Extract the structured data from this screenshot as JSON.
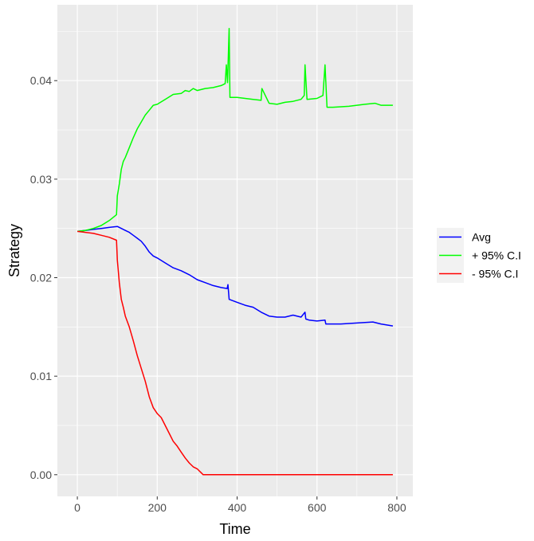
{
  "chart_data": {
    "type": "line",
    "title": "",
    "xlabel": "Time",
    "ylabel": "Strategy",
    "xlim": [
      -50,
      840
    ],
    "ylim": [
      -0.0022,
      0.0477
    ],
    "x_ticks": [
      0,
      200,
      400,
      600,
      800
    ],
    "x_tick_labels": [
      "0",
      "200",
      "400",
      "600",
      "800"
    ],
    "y_ticks": [
      0,
      0.01,
      0.02,
      0.03,
      0.04
    ],
    "y_tick_labels": [
      "0.00",
      "0.01",
      "0.02",
      "0.03",
      "0.04"
    ],
    "grid": true,
    "legend_position": "right",
    "series": [
      {
        "name": "Avg",
        "color": "#0000ff",
        "x": [
          0,
          20,
          40,
          60,
          80,
          100,
          110,
          120,
          130,
          140,
          150,
          160,
          170,
          180,
          190,
          200,
          220,
          240,
          260,
          280,
          300,
          320,
          340,
          360,
          375,
          377,
          380,
          400,
          420,
          440,
          460,
          480,
          500,
          520,
          540,
          560,
          570,
          572,
          580,
          600,
          620,
          622,
          640,
          660,
          700,
          740,
          760,
          790
        ],
        "y": [
          0.0247,
          0.0248,
          0.0249,
          0.025,
          0.0251,
          0.0252,
          0.025,
          0.0248,
          0.0246,
          0.0243,
          0.024,
          0.0237,
          0.0232,
          0.0226,
          0.0222,
          0.022,
          0.0215,
          0.021,
          0.0207,
          0.0203,
          0.0198,
          0.0195,
          0.0192,
          0.019,
          0.0189,
          0.0193,
          0.0178,
          0.0175,
          0.0172,
          0.017,
          0.0165,
          0.0161,
          0.016,
          0.016,
          0.0162,
          0.016,
          0.0165,
          0.0158,
          0.0157,
          0.0156,
          0.0157,
          0.0153,
          0.0153,
          0.0153,
          0.0154,
          0.0155,
          0.0153,
          0.0151
        ]
      },
      {
        "name": "+ 95% C.I",
        "color": "#00ff00",
        "x": [
          0,
          20,
          40,
          60,
          80,
          98,
          100,
          105,
          110,
          115,
          120,
          130,
          140,
          150,
          160,
          170,
          180,
          190,
          200,
          220,
          240,
          260,
          270,
          280,
          290,
          300,
          320,
          340,
          360,
          370,
          373,
          376,
          380,
          382,
          400,
          420,
          440,
          460,
          462,
          480,
          500,
          520,
          540,
          560,
          568,
          570,
          575,
          600,
          615,
          620,
          625,
          640,
          680,
          720,
          745,
          760,
          790
        ],
        "y": [
          0.0247,
          0.0248,
          0.025,
          0.0253,
          0.0258,
          0.0264,
          0.0283,
          0.0295,
          0.031,
          0.0318,
          0.0322,
          0.0332,
          0.0342,
          0.0351,
          0.0358,
          0.0365,
          0.037,
          0.0375,
          0.0376,
          0.0381,
          0.0386,
          0.0387,
          0.039,
          0.0389,
          0.0392,
          0.039,
          0.0392,
          0.0393,
          0.0395,
          0.0397,
          0.0416,
          0.0398,
          0.0453,
          0.0383,
          0.0383,
          0.0382,
          0.0381,
          0.038,
          0.0392,
          0.0377,
          0.0376,
          0.0378,
          0.0379,
          0.0381,
          0.0385,
          0.0416,
          0.0381,
          0.0382,
          0.0385,
          0.0416,
          0.0373,
          0.0373,
          0.0374,
          0.0376,
          0.0377,
          0.0375,
          0.0375
        ]
      },
      {
        "name": "- 95% C.I",
        "color": "#ff0000",
        "x": [
          0,
          20,
          40,
          60,
          80,
          98,
          100,
          105,
          110,
          115,
          120,
          130,
          140,
          150,
          160,
          170,
          180,
          190,
          200,
          210,
          220,
          230,
          240,
          250,
          260,
          270,
          280,
          290,
          300,
          305,
          310,
          315,
          320,
          400,
          500,
          600,
          700,
          790
        ],
        "y": [
          0.0247,
          0.0246,
          0.0245,
          0.0243,
          0.0241,
          0.0238,
          0.0218,
          0.0195,
          0.0178,
          0.017,
          0.0161,
          0.015,
          0.0136,
          0.0121,
          0.0108,
          0.0095,
          0.0079,
          0.0068,
          0.0062,
          0.0058,
          0.005,
          0.0042,
          0.0034,
          0.0029,
          0.0023,
          0.0017,
          0.0012,
          0.0008,
          0.0006,
          0.0004,
          0.0002,
          0.0,
          0.0,
          0.0,
          0.0,
          0.0,
          0.0,
          0.0
        ]
      }
    ]
  },
  "colors": {
    "panel_background": "#ebebeb",
    "grid_major": "#ffffff",
    "tick_text": "#4d4d4d",
    "legend_key_background": "#f2f2f2"
  }
}
